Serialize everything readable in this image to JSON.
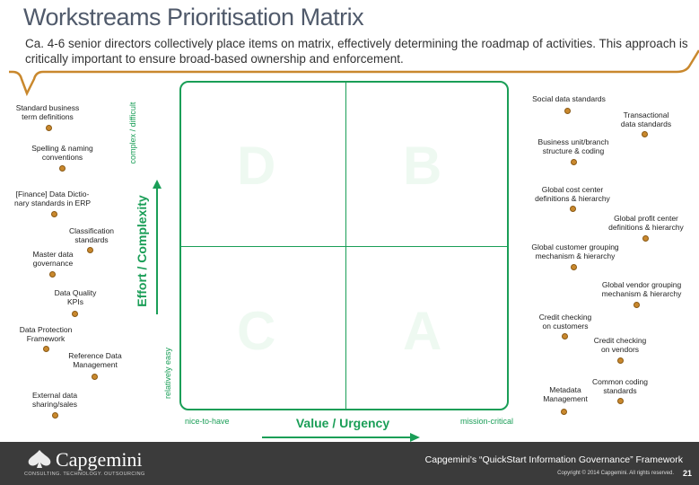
{
  "header": {
    "title": "Workstreams Prioritisation Matrix",
    "subtitle": "Ca. 4-6 senior directors collectively place items on matrix, effectively determining the roadmap of activities. This approach is critically important to ensure broad-based ownership and enforcement."
  },
  "axes": {
    "y_label": "Effort / Complexity",
    "y_top": "complex / difficult",
    "y_bottom": "relatively easy",
    "x_label": "Value / Urgency",
    "x_left": "nice-to-have",
    "x_right": "mission-critical"
  },
  "quadrants": {
    "top_left": "D",
    "top_right": "B",
    "bottom_left": "C",
    "bottom_right": "A"
  },
  "left_items": [
    "Standard business\nterm definitions",
    "Spelling & naming\nconventions",
    "[Finance] Data Dictio-\nnary standards in ERP",
    "Classification\nstandards",
    "Master data\ngovernance",
    "Data Quality\nKPIs",
    "Data Protection\nFramework",
    "Reference Data\nManagement",
    "External data\nsharing/sales"
  ],
  "right_items": [
    "Social data standards",
    "Transactional\ndata standards",
    "Business unit/branch\nstructure & coding",
    "Global cost center\ndefinitions & hierarchy",
    "Global profit center\ndefinitions & hierarchy",
    "Global customer grouping\nmechanism & hierarchy",
    "Global vendor grouping\nmechanism & hierarchy",
    "Credit checking\non customers",
    "Credit checking\non vendors",
    "Metadata\nManagement",
    "Common coding\nstandards"
  ],
  "footer": {
    "logo": "Capgemini",
    "logo_tagline": "CONSULTING. TECHNOLOGY. OUTSOURCING",
    "framework": "Capgemini's “QuickStart Information Governance” Framework",
    "copyright": "Copyright © 2014 Capgemini. All rights reserved.",
    "page": "21"
  },
  "colors": {
    "accent": "#1a9e57",
    "dot": "#c9882d",
    "footer": "#3b3b3b",
    "title": "#505a6b"
  }
}
